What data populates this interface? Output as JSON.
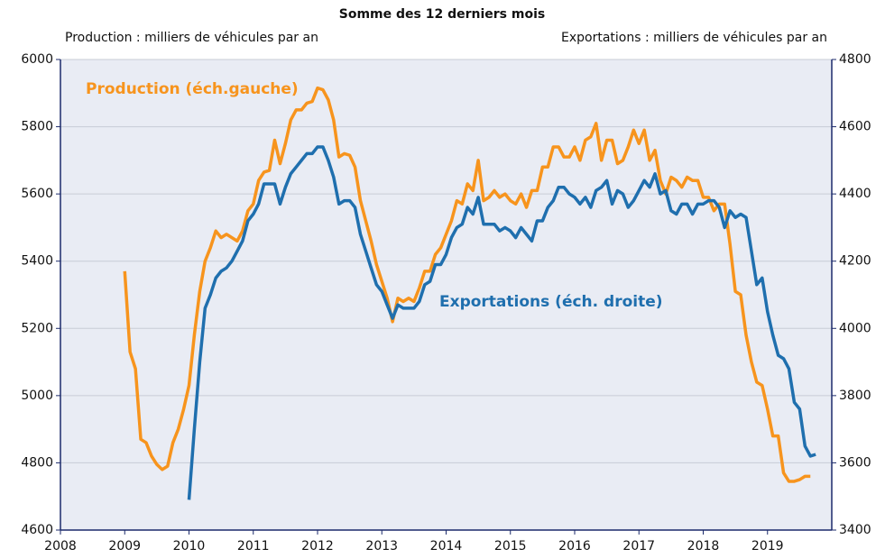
{
  "chart_data": {
    "type": "line",
    "title": "Somme des 12 derniers mois",
    "y_label": "Production : milliers de véhicules par an",
    "y2_label": "Exportations : milliers de véhicules par an",
    "annotations": [
      "Production (éch.gauche)",
      "Exportations (éch. droite)"
    ],
    "xlim": [
      2008,
      2020
    ],
    "xticks": [
      2008,
      2009,
      2010,
      2011,
      2012,
      2013,
      2014,
      2015,
      2016,
      2017,
      2018,
      2019
    ],
    "ylim": [
      4600,
      6000
    ],
    "yticks": [
      4600,
      4800,
      5000,
      5200,
      5400,
      5600,
      5800,
      6000
    ],
    "y2lim": [
      3400,
      4800
    ],
    "y2ticks": [
      3400,
      3600,
      3800,
      4000,
      4200,
      4400,
      4600,
      4800
    ],
    "grid": true,
    "x": [
      2009,
      2009.083,
      2009.167,
      2009.25,
      2009.333,
      2009.417,
      2009.5,
      2009.583,
      2009.667,
      2009.75,
      2009.833,
      2009.917,
      2010,
      2010.083,
      2010.167,
      2010.25,
      2010.333,
      2010.417,
      2010.5,
      2010.583,
      2010.667,
      2010.75,
      2010.833,
      2010.917,
      2011,
      2011.083,
      2011.167,
      2011.25,
      2011.333,
      2011.417,
      2011.5,
      2011.583,
      2011.667,
      2011.75,
      2011.833,
      2011.917,
      2012,
      2012.083,
      2012.167,
      2012.25,
      2012.333,
      2012.417,
      2012.5,
      2012.583,
      2012.667,
      2012.75,
      2012.833,
      2012.917,
      2013,
      2013.083,
      2013.167,
      2013.25,
      2013.333,
      2013.417,
      2013.5,
      2013.583,
      2013.667,
      2013.75,
      2013.833,
      2013.917,
      2014,
      2014.083,
      2014.167,
      2014.25,
      2014.333,
      2014.417,
      2014.5,
      2014.583,
      2014.667,
      2014.75,
      2014.833,
      2014.917,
      2015,
      2015.083,
      2015.167,
      2015.25,
      2015.333,
      2015.417,
      2015.5,
      2015.583,
      2015.667,
      2015.75,
      2015.833,
      2015.917,
      2016,
      2016.083,
      2016.167,
      2016.25,
      2016.333,
      2016.417,
      2016.5,
      2016.583,
      2016.667,
      2016.75,
      2016.833,
      2016.917,
      2017,
      2017.083,
      2017.167,
      2017.25,
      2017.333,
      2017.417,
      2017.5,
      2017.583,
      2017.667,
      2017.75,
      2017.833,
      2017.917,
      2018,
      2018.083,
      2018.167,
      2018.25,
      2018.333,
      2018.417,
      2018.5,
      2018.583,
      2018.667,
      2018.75,
      2018.833,
      2018.917,
      2019,
      2019.083,
      2019.167,
      2019.25,
      2019.333,
      2019.417,
      2019.5,
      2019.583,
      2019.667,
      2019.75
    ],
    "series": [
      {
        "name": "Production",
        "color": "#f7941d",
        "axis": "y",
        "values": [
          5370,
          5130,
          5080,
          4870,
          4860,
          4820,
          4795,
          4780,
          4790,
          4860,
          4900,
          4960,
          5030,
          5180,
          5310,
          5400,
          5440,
          5490,
          5470,
          5480,
          5470,
          5460,
          5490,
          5550,
          5570,
          5640,
          5665,
          5670,
          5760,
          5690,
          5750,
          5820,
          5850,
          5850,
          5870,
          5875,
          5915,
          5910,
          5880,
          5820,
          5710,
          5720,
          5715,
          5680,
          5580,
          5520,
          5460,
          5390,
          5340,
          5290,
          5220,
          5290,
          5280,
          5290,
          5280,
          5320,
          5370,
          5370,
          5420,
          5440,
          5480,
          5520,
          5580,
          5570,
          5630,
          5610,
          5700,
          5580,
          5590,
          5610,
          5590,
          5600,
          5580,
          5570,
          5600,
          5560,
          5610,
          5610,
          5680,
          5680,
          5740,
          5740,
          5710,
          5710,
          5740,
          5700,
          5760,
          5770,
          5810,
          5700,
          5760,
          5760,
          5690,
          5700,
          5740,
          5790,
          5750,
          5790,
          5700,
          5730,
          5640,
          5600,
          5650,
          5640,
          5620,
          5650,
          5640,
          5640,
          5590,
          5590,
          5550,
          5570,
          5570,
          5450,
          5310,
          5300,
          5180,
          5100,
          5040,
          5030,
          4960,
          4880,
          4880,
          4770,
          4745,
          4745,
          4750,
          4760,
          4760,
          null
        ]
      },
      {
        "name": "Exportations",
        "color": "#1f6fae",
        "axis": "y2",
        "values": [
          null,
          null,
          null,
          null,
          null,
          null,
          null,
          null,
          null,
          null,
          null,
          null,
          3490,
          3700,
          3900,
          4060,
          4100,
          4150,
          4170,
          4180,
          4200,
          4230,
          4260,
          4320,
          4340,
          4370,
          4430,
          4430,
          4430,
          4370,
          4420,
          4460,
          4480,
          4500,
          4520,
          4520,
          4540,
          4540,
          4500,
          4450,
          4370,
          4380,
          4380,
          4360,
          4280,
          4230,
          4180,
          4130,
          4110,
          4070,
          4030,
          4070,
          4060,
          4060,
          4060,
          4080,
          4130,
          4140,
          4190,
          4190,
          4220,
          4270,
          4300,
          4310,
          4360,
          4340,
          4390,
          4310,
          4310,
          4310,
          4290,
          4300,
          4290,
          4270,
          4300,
          4280,
          4260,
          4320,
          4320,
          4360,
          4380,
          4420,
          4420,
          4400,
          4390,
          4370,
          4390,
          4360,
          4410,
          4420,
          4440,
          4370,
          4410,
          4400,
          4360,
          4380,
          4410,
          4440,
          4420,
          4460,
          4400,
          4410,
          4350,
          4340,
          4370,
          4370,
          4340,
          4370,
          4370,
          4380,
          4380,
          4360,
          4300,
          4350,
          4330,
          4340,
          4330,
          4230,
          4130,
          4150,
          4050,
          3980,
          3920,
          3910,
          3880,
          3780,
          3760,
          3650,
          3620,
          3625
        ]
      }
    ]
  }
}
